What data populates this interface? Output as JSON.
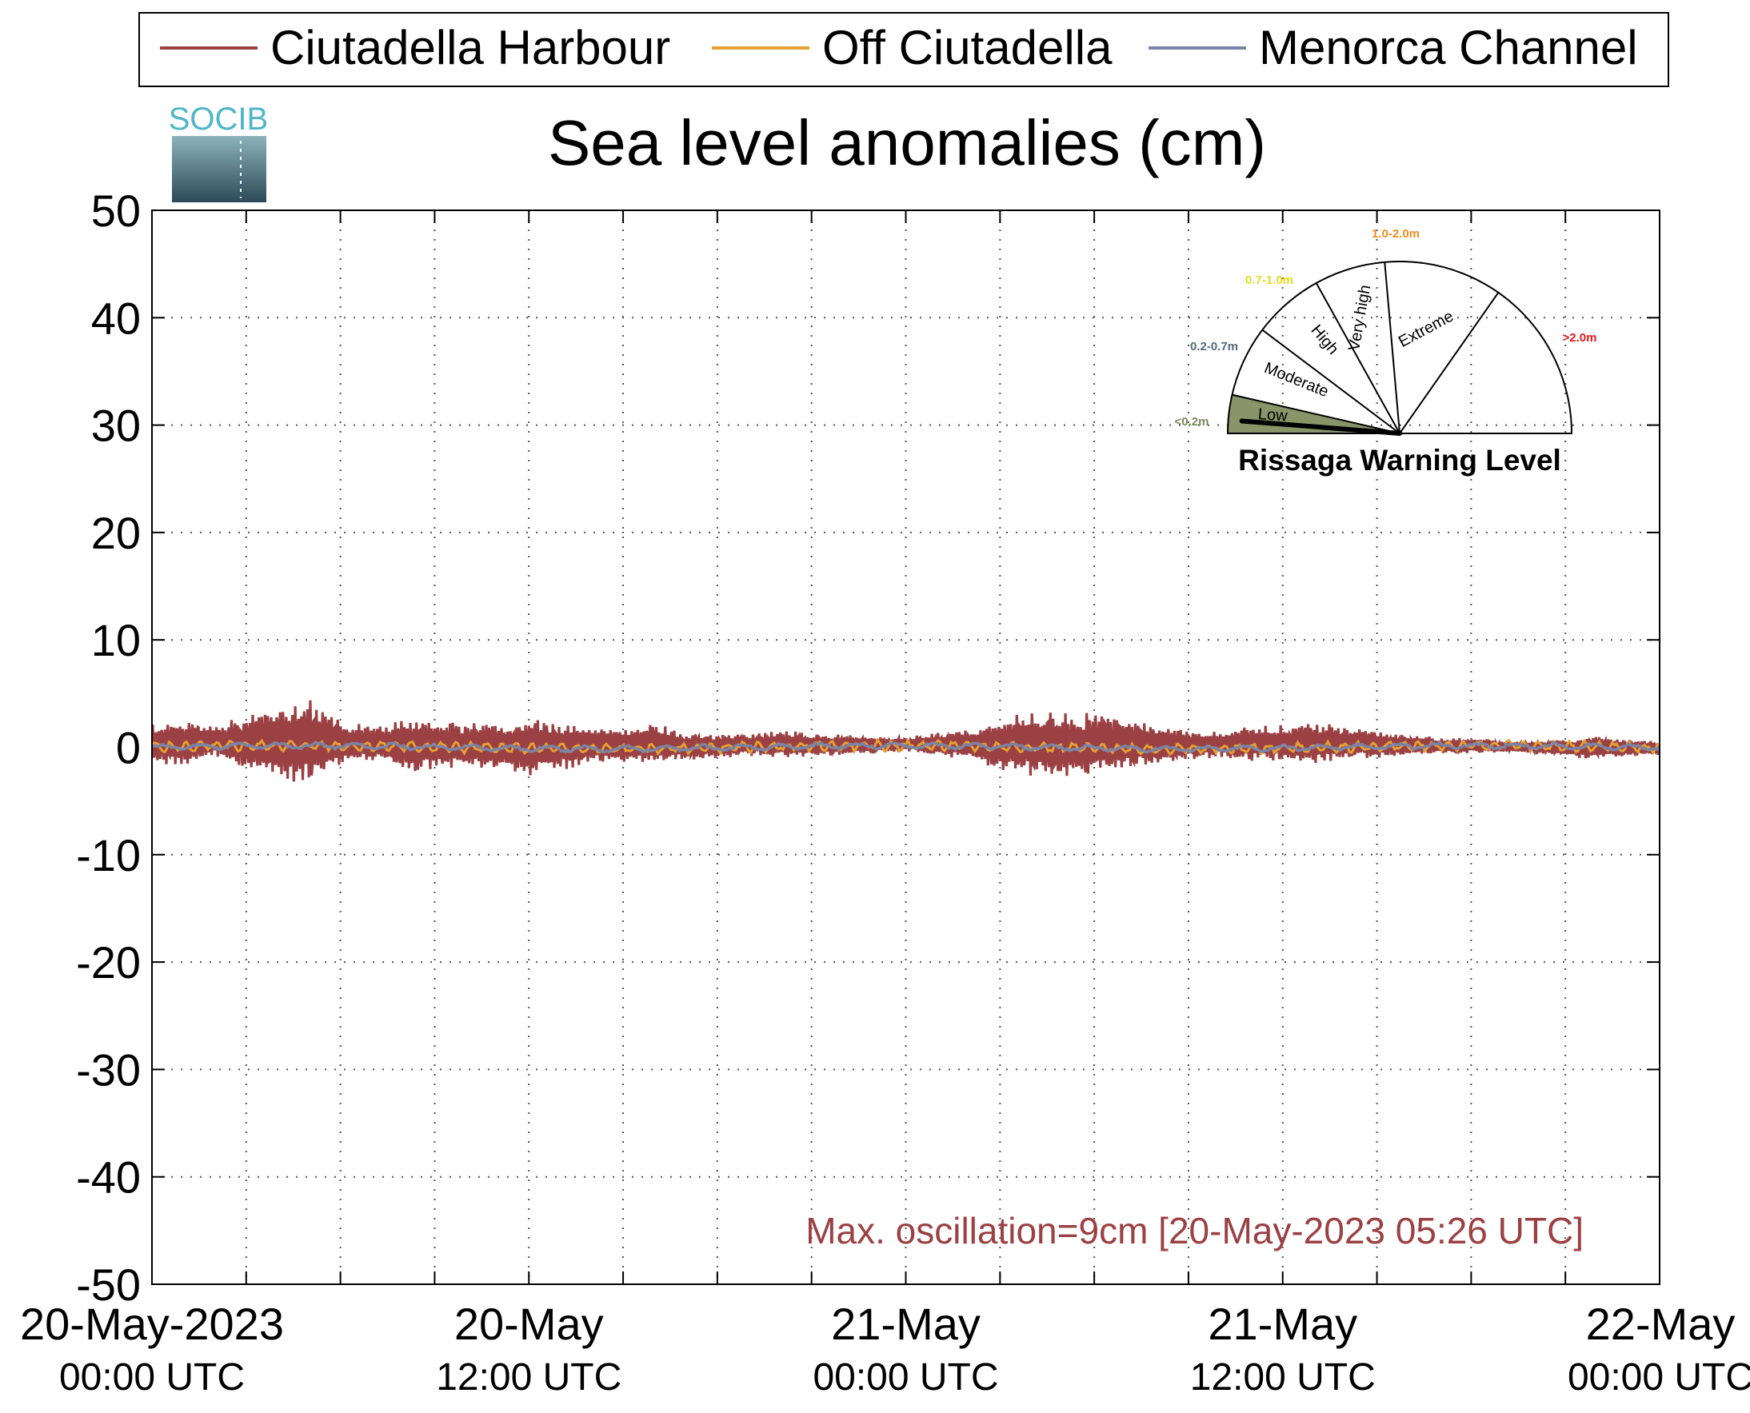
{
  "chart_data": {
    "type": "line",
    "title": "Sea level anomalies (cm)",
    "ylim": [
      -50,
      50
    ],
    "yticks": [
      "50",
      "40",
      "30",
      "20",
      "10",
      "0",
      "-10",
      "-20",
      "-30",
      "-40",
      "-50"
    ],
    "xlim_hours": [
      0,
      48
    ],
    "xtick_labels": [
      {
        "hour": 0,
        "date": "20-May-2023",
        "time": "00:00 UTC"
      },
      {
        "hour": 12,
        "date": "20-May",
        "time": "12:00 UTC"
      },
      {
        "hour": 24,
        "date": "21-May",
        "time": "00:00 UTC"
      },
      {
        "hour": 36,
        "date": "21-May",
        "time": "12:00 UTC"
      },
      {
        "hour": 48,
        "date": "22-May",
        "time": "00:00 UTC"
      }
    ],
    "grid": true,
    "legend_placement": "top",
    "series": [
      {
        "name": "Ciutadella Harbour",
        "color": "#9b4043",
        "envelope_hours": [
          0,
          1,
          2,
          3,
          4,
          5,
          6,
          7,
          8,
          9,
          10,
          11,
          12,
          13,
          14,
          15,
          16,
          17,
          18,
          19,
          20,
          21,
          22,
          23,
          24,
          25,
          26,
          27,
          28,
          29,
          30,
          31,
          32,
          33,
          34,
          35,
          36,
          37,
          38,
          39,
          40,
          41,
          42,
          43,
          44,
          45,
          46,
          47,
          48
        ],
        "envelope_upper": [
          2.2,
          2.5,
          2.2,
          3.0,
          3.8,
          4.8,
          2.5,
          2.0,
          2.8,
          2.5,
          2.3,
          2.5,
          2.7,
          2.4,
          2.0,
          1.8,
          2.3,
          1.4,
          1.2,
          1.3,
          1.6,
          1.4,
          1.2,
          1.0,
          1.0,
          1.4,
          1.6,
          2.8,
          3.5,
          3.2,
          3.2,
          2.8,
          2.2,
          1.6,
          1.5,
          2.0,
          2.1,
          2.3,
          2.0,
          1.6,
          1.2,
          0.9,
          0.9,
          0.6,
          0.6,
          0.8,
          1.1,
          0.7,
          0.6
        ],
        "envelope_lower": [
          -1.6,
          -1.8,
          -1.0,
          -2.2,
          -3.0,
          -3.6,
          -1.8,
          -1.2,
          -2.4,
          -2.2,
          -2.0,
          -2.2,
          -2.8,
          -2.2,
          -1.6,
          -1.4,
          -1.6,
          -1.2,
          -1.0,
          -0.8,
          -1.0,
          -0.9,
          -0.8,
          -0.6,
          -0.4,
          -0.8,
          -1.2,
          -2.4,
          -2.8,
          -2.8,
          -2.6,
          -2.2,
          -1.6,
          -1.2,
          -1.0,
          -1.3,
          -1.4,
          -1.5,
          -1.2,
          -1.0,
          -0.8,
          -0.6,
          -0.6,
          -0.5,
          -0.6,
          -0.9,
          -1.2,
          -0.9,
          -0.7
        ]
      },
      {
        "name": "Off Ciutadella",
        "color": "#e5a032",
        "amplitude_cm": 0.5
      },
      {
        "name": "Menorca Channel",
        "color": "#7b84a6",
        "amplitude_cm": 0.3
      }
    ],
    "annotation": "Max. oscillation=9cm [20-May-2023 05:26 UTC]",
    "annotation_color": "#9b4043"
  },
  "logo": {
    "text": "SOCIB"
  },
  "gauge": {
    "title": "Rissaga Warning Level",
    "sectors": [
      {
        "label": "Low",
        "range": "<0.2m",
        "range_color": "#7a8a58"
      },
      {
        "label": "Moderate",
        "range": "0.2-0.7m",
        "range_color": "#4f6b78"
      },
      {
        "label": "High",
        "range": "0.7-1.0m",
        "range_color": "#e6dc22"
      },
      {
        "label": "Very high",
        "range": "1.0-2.0m",
        "range_color": "#f08c1c"
      },
      {
        "label": "Extreme",
        "range": ">2.0m",
        "range_color": "#e01818"
      }
    ],
    "active_sector": "Low",
    "active_color": "#8a9468"
  }
}
